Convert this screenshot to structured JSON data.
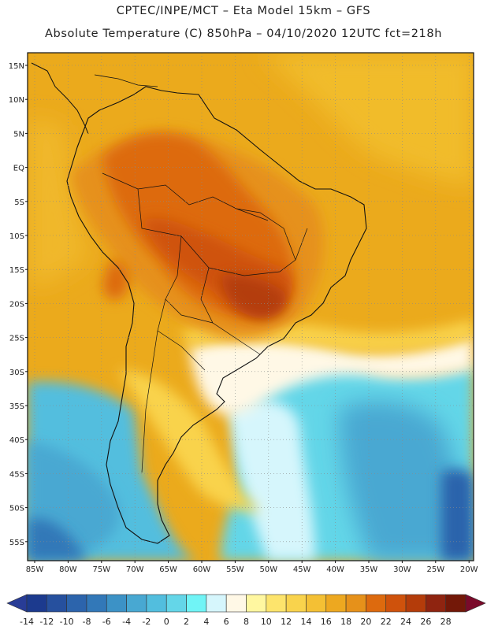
{
  "header": {
    "line1": "CPTEC/INPE/MCT –  Eta Model 15km – GFS",
    "line2": "Absolute Temperature (C) 850hPa – 04/10/2020 12UTC fct=218h"
  },
  "map": {
    "lat_labels": [
      "15N",
      "10N",
      "5N",
      "EQ",
      "5S",
      "10S",
      "15S",
      "20S",
      "25S",
      "30S",
      "35S",
      "40S",
      "45S",
      "50S",
      "55S"
    ],
    "lon_labels": [
      "85W",
      "80W",
      "75W",
      "70W",
      "65W",
      "60W",
      "55W",
      "50W",
      "45W",
      "40W",
      "35W",
      "30W",
      "25W",
      "20W"
    ],
    "background": "#ebaa1c"
  },
  "colorbar": {
    "labels": [
      "-14",
      "-12",
      "-10",
      "-8",
      "-6",
      "-4",
      "-2",
      "0",
      "2",
      "4",
      "6",
      "8",
      "10",
      "12",
      "14",
      "16",
      "18",
      "20",
      "22",
      "24",
      "26",
      "28"
    ],
    "colors": [
      "#1c3a8e",
      "#26509e",
      "#2c64ac",
      "#3278b8",
      "#3c92c6",
      "#48a8d2",
      "#52bede",
      "#64d6e8",
      "#70f4f6",
      "#d6f6fc",
      "#fff8e6",
      "#fff7a0",
      "#fde46c",
      "#f9d34c",
      "#f4c034",
      "#eda820",
      "#e6911a",
      "#dd6a0e",
      "#cf520c",
      "#b43c0a",
      "#8f2410",
      "#731808"
    ],
    "under_color": "#283c96",
    "over_color": "#7a0a2a"
  }
}
